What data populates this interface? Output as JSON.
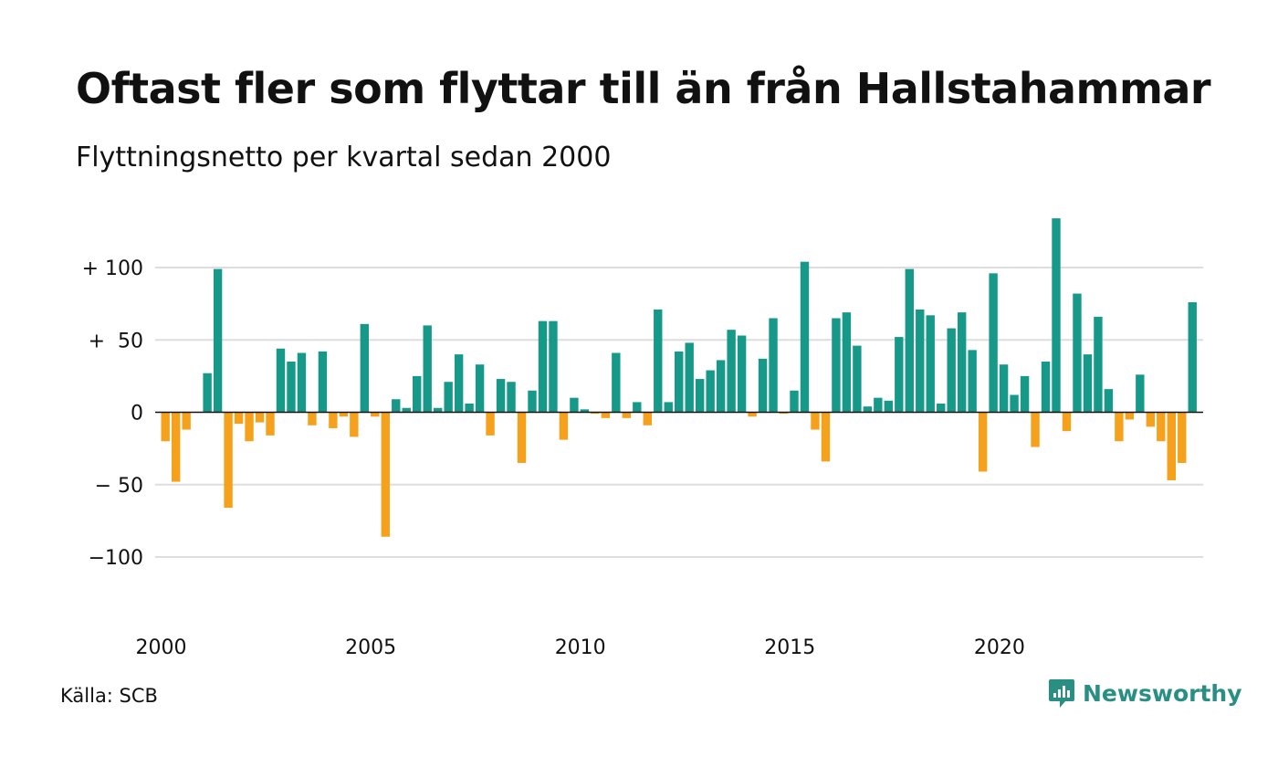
{
  "title": "Oftast fler som flyttar till än från Hallstahammar",
  "subtitle": "Flyttningsnetto per kvartal sedan 2000",
  "source": "Källa: SCB",
  "brand": {
    "name": "Newsworthy",
    "icon": "newsworthy-chat-chart-icon"
  },
  "colors": {
    "positive": "#17998a",
    "negative": "#f5a11c",
    "grid": "#dddddd",
    "zero": "#111111"
  },
  "chart_data": {
    "type": "bar",
    "title": "Oftast fler som flyttar till än från Hallstahammar",
    "subtitle": "Flyttningsnetto per kvartal sedan 2000",
    "xlabel": "",
    "ylabel": "",
    "start_year": 2000,
    "x_tick_labels": [
      "2000",
      "2005",
      "2010",
      "2015",
      "2020"
    ],
    "y_ticks": [
      100,
      50,
      0,
      -50,
      -100
    ],
    "y_tick_labels": [
      "+ 100",
      "+  50",
      "0",
      "− 50",
      "−100"
    ],
    "ylim": [
      -140,
      140
    ],
    "grid": true,
    "values": [
      -20,
      -48,
      -12,
      0,
      27,
      99,
      -66,
      -8,
      -20,
      -7,
      -16,
      44,
      35,
      41,
      -9,
      42,
      -11,
      -3,
      -17,
      61,
      -3,
      -86,
      9,
      3,
      25,
      60,
      3,
      21,
      40,
      6,
      33,
      -16,
      23,
      21,
      -35,
      15,
      63,
      63,
      -19,
      10,
      2,
      -1,
      -4,
      41,
      -4,
      7,
      -9,
      71,
      7,
      42,
      48,
      23,
      29,
      36,
      57,
      53,
      -3,
      37,
      65,
      -1,
      15,
      104,
      -12,
      -34,
      65,
      69,
      46,
      4,
      10,
      8,
      52,
      99,
      71,
      67,
      6,
      58,
      69,
      43,
      -41,
      96,
      33,
      12,
      25,
      -24,
      35,
      134,
      -13,
      82,
      40,
      66,
      16,
      -20,
      -5,
      26,
      -10,
      -20,
      -47,
      -35,
      76
    ]
  }
}
